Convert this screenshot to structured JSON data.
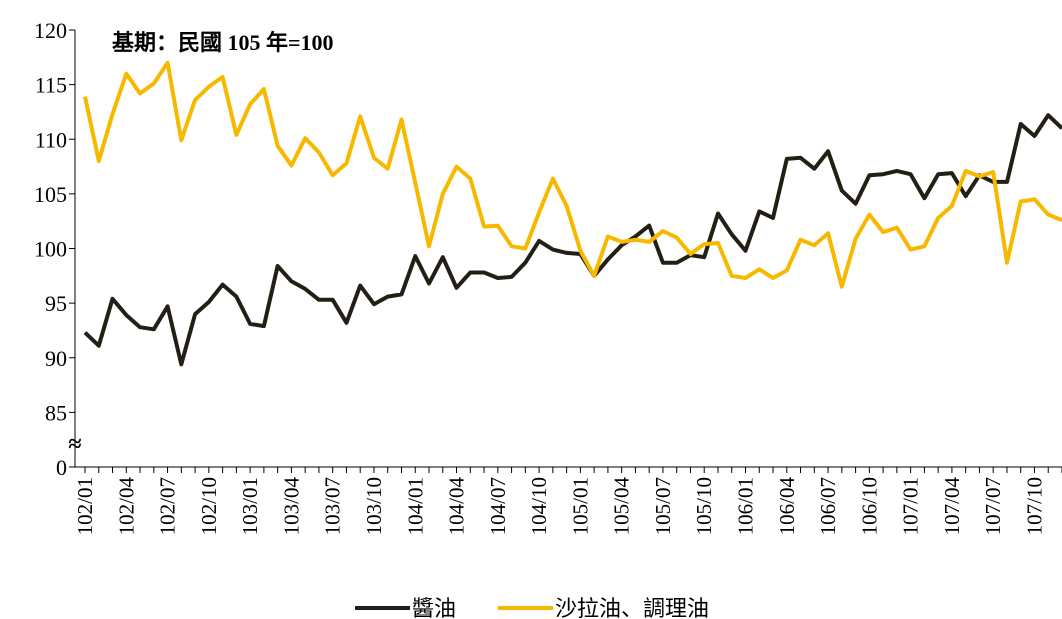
{
  "chart_data": {
    "type": "line",
    "annotation": "基期：民國 105 年=100",
    "categories": [
      "102/01",
      null,
      null,
      "102/04",
      null,
      null,
      "102/07",
      null,
      null,
      "102/10",
      null,
      null,
      "103/01",
      null,
      null,
      "103/04",
      null,
      null,
      "103/07",
      null,
      null,
      "103/10",
      null,
      null,
      "104/01",
      null,
      null,
      "104/04",
      null,
      null,
      "104/07",
      null,
      null,
      "104/10",
      null,
      null,
      "105/01",
      null,
      null,
      "105/04",
      null,
      null,
      "105/07",
      null,
      null,
      "105/10",
      null,
      null,
      "106/01",
      null,
      null,
      "106/04",
      null,
      null,
      "106/07",
      null,
      null,
      "106/10",
      null,
      null,
      "107/01",
      null,
      null,
      "107/04",
      null,
      null,
      "107/07",
      null,
      null,
      "107/10",
      null,
      null
    ],
    "series": [
      {
        "name": "醬油",
        "color": "#231f14",
        "values": [
          92.3,
          91.1,
          95.4,
          93.9,
          92.8,
          92.6,
          94.7,
          89.4,
          94.0,
          95.1,
          96.7,
          95.6,
          93.1,
          92.9,
          98.4,
          97.0,
          96.3,
          95.3,
          95.3,
          93.2,
          96.6,
          94.9,
          95.6,
          95.8,
          99.3,
          96.8,
          99.2,
          96.4,
          97.8,
          97.8,
          97.3,
          97.4,
          98.7,
          100.7,
          99.9,
          99.6,
          99.5,
          97.5,
          99.0,
          100.3,
          101.1,
          102.1,
          98.7,
          98.7,
          99.4,
          99.2,
          103.2,
          101.3,
          99.8,
          103.4,
          102.8,
          108.2,
          108.3,
          107.3,
          108.9,
          105.3,
          104.1,
          106.7,
          106.8,
          107.1,
          106.8,
          104.6,
          106.8,
          106.9,
          104.8,
          106.7,
          106.1,
          106.1,
          111.4,
          110.3,
          112.2,
          111.0
        ]
      },
      {
        "name": "沙拉油、調理油",
        "color": "#f7b900",
        "values": [
          113.9,
          108.0,
          112.3,
          116.0,
          114.2,
          115.1,
          117.0,
          109.9,
          113.6,
          114.8,
          115.7,
          110.4,
          113.2,
          114.6,
          109.4,
          107.6,
          110.1,
          108.8,
          106.7,
          107.8,
          112.1,
          108.3,
          107.3,
          111.8,
          106.0,
          100.2,
          105.0,
          107.5,
          106.4,
          102.0,
          102.1,
          100.2,
          100.0,
          103.3,
          106.4,
          103.9,
          99.8,
          97.5,
          101.1,
          100.6,
          100.8,
          100.6,
          101.6,
          101.0,
          99.5,
          100.4,
          100.5,
          97.5,
          97.3,
          98.1,
          97.3,
          98.0,
          100.8,
          100.3,
          101.4,
          96.5,
          100.9,
          103.1,
          101.5,
          101.9,
          99.9,
          100.2,
          102.8,
          103.9,
          107.1,
          106.6,
          107.0,
          98.7,
          104.3,
          104.5,
          103.1,
          102.6
        ]
      }
    ],
    "ylim": [
      0,
      120
    ],
    "yticks": [
      0,
      85,
      90,
      95,
      100,
      105,
      110,
      115,
      120
    ],
    "axis_break": [
      0,
      80
    ],
    "break_symbol": "≈",
    "legend": "bottom",
    "grid": false
  }
}
